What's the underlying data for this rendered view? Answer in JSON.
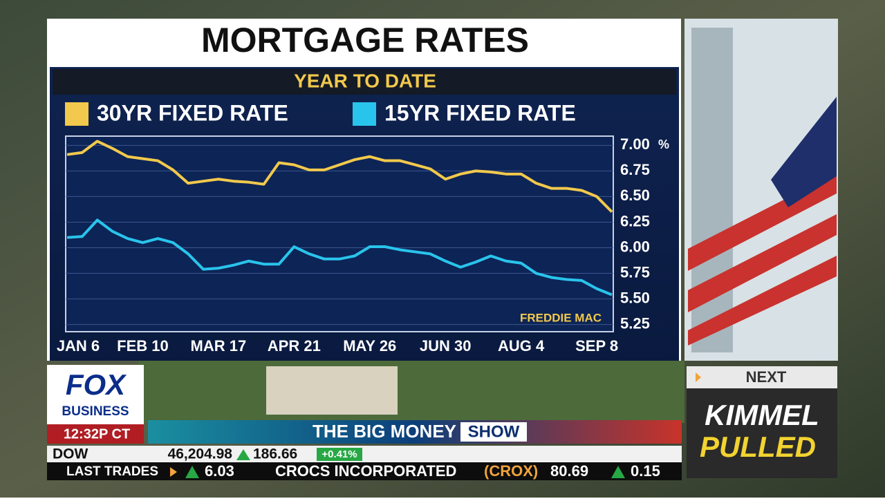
{
  "chart_data": {
    "type": "line",
    "title": "MORTGAGE RATES",
    "subtitle": "YEAR TO DATE",
    "source": "FREDDIE MAC",
    "y_unit": "%",
    "categories": [
      "JAN 6",
      null,
      null,
      null,
      null,
      "FEB 10",
      null,
      null,
      null,
      null,
      "MAR 17",
      null,
      null,
      null,
      null,
      "APR 21",
      null,
      null,
      null,
      null,
      "MAY 26",
      null,
      null,
      null,
      null,
      "JUN 30",
      null,
      null,
      null,
      null,
      "AUG 4",
      null,
      null,
      null,
      null,
      "SEP 8",
      null
    ],
    "series": [
      {
        "name": "30YR FIXED RATE",
        "color": "#f2c94c",
        "values": [
          6.91,
          6.93,
          7.04,
          6.97,
          6.89,
          6.87,
          6.85,
          6.76,
          6.63,
          6.65,
          6.67,
          6.65,
          6.64,
          6.62,
          6.83,
          6.81,
          6.76,
          6.76,
          6.81,
          6.86,
          6.89,
          6.85,
          6.85,
          6.81,
          6.77,
          6.67,
          6.72,
          6.75,
          6.74,
          6.72,
          6.72,
          6.63,
          6.58,
          6.58,
          6.56,
          6.5,
          6.35
        ]
      },
      {
        "name": "15YR FIXED RATE",
        "color": "#29c4ec",
        "values": [
          6.1,
          6.11,
          6.27,
          6.16,
          6.09,
          6.05,
          6.09,
          6.05,
          5.94,
          5.79,
          5.8,
          5.83,
          5.87,
          5.84,
          5.84,
          6.01,
          5.94,
          5.89,
          5.89,
          5.92,
          6.01,
          6.01,
          5.98,
          5.96,
          5.94,
          5.87,
          5.81,
          5.86,
          5.92,
          5.87,
          5.85,
          5.75,
          5.71,
          5.69,
          5.68,
          5.6,
          5.54
        ]
      }
    ],
    "ylim": [
      5.18,
      7.09
    ],
    "yticks": [
      {
        "value": 7,
        "label": "7.00"
      },
      {
        "value": 6.75,
        "label": "6.75"
      },
      {
        "value": 6.5,
        "label": "6.50"
      },
      {
        "value": 6.25,
        "label": "6.25"
      },
      {
        "value": 6,
        "label": "6.00"
      },
      {
        "value": 5.75,
        "label": "5.75"
      },
      {
        "value": 5.5,
        "label": "5.50"
      },
      {
        "value": 5.25,
        "label": "5.25"
      }
    ],
    "grid": true
  },
  "network": {
    "logo_top": "FOX",
    "logo_bottom": "BUSINESS",
    "clock": "12:32P CT",
    "show_left": "THE BIG MONEY",
    "show_right": "SHOW"
  },
  "ticker": {
    "index": "DOW",
    "level": "46,204.98",
    "change": "186.66",
    "pct": "+0.41%",
    "label": "LAST TRADES",
    "prev_change": "6.03",
    "company": "CROCS INCORPORATED",
    "symbol": "(CROX)",
    "price": "80.69",
    "delta": "0.15"
  },
  "next": {
    "label": "NEXT",
    "line1": "KIMMEL",
    "line2": "PULLED"
  }
}
